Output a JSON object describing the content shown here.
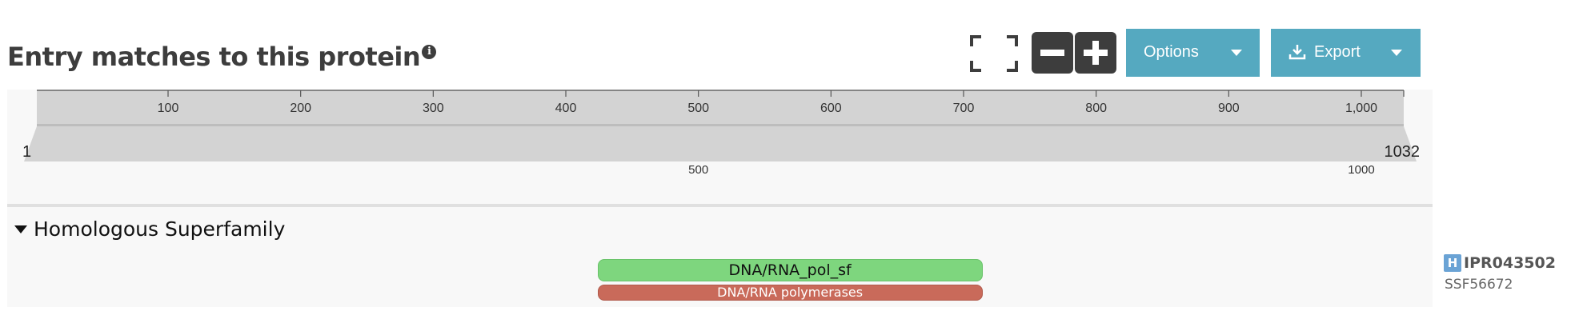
{
  "header": {
    "title": "Entry matches to this protein",
    "info_icon_glyph": "i",
    "options_label": "Options",
    "export_label": "Export"
  },
  "icons": {
    "fullscreen": "fullscreen-icon",
    "zoom_out": "minus-icon",
    "zoom_in": "plus-icon",
    "info": "info-icon",
    "download": "download-icon",
    "caret": "caret-down-icon"
  },
  "colors": {
    "accent_button": "#55a9c0",
    "dark_button": "#3d3d3d",
    "track_green": "#7ed67e",
    "track_red": "#c96a5a",
    "badge_blue": "#6aa3d5"
  },
  "navigation": {
    "protein_length": 1032,
    "ruler_ticks": [
      100,
      200,
      300,
      400,
      500,
      600,
      700,
      800,
      900,
      1000
    ],
    "ruler_tick_labels": [
      "100",
      "200",
      "300",
      "400",
      "500",
      "600",
      "700",
      "800",
      "900",
      "1,000"
    ],
    "zoom_start_label": "1",
    "zoom_end_label": "1032",
    "lower_ticks": [
      500,
      1000
    ],
    "lower_tick_labels": [
      "500",
      "1000"
    ]
  },
  "group": {
    "label": "Homologous Superfamily"
  },
  "entries": [
    {
      "track_label": "DNA/RNA_pol_sf",
      "accession": "IPR043502",
      "badge": "H",
      "start": 424,
      "end": 713
    }
  ],
  "matches": [
    {
      "track_label": "DNA/RNA polymerases",
      "accession": "SSF56672",
      "start": 424,
      "end": 713
    }
  ]
}
